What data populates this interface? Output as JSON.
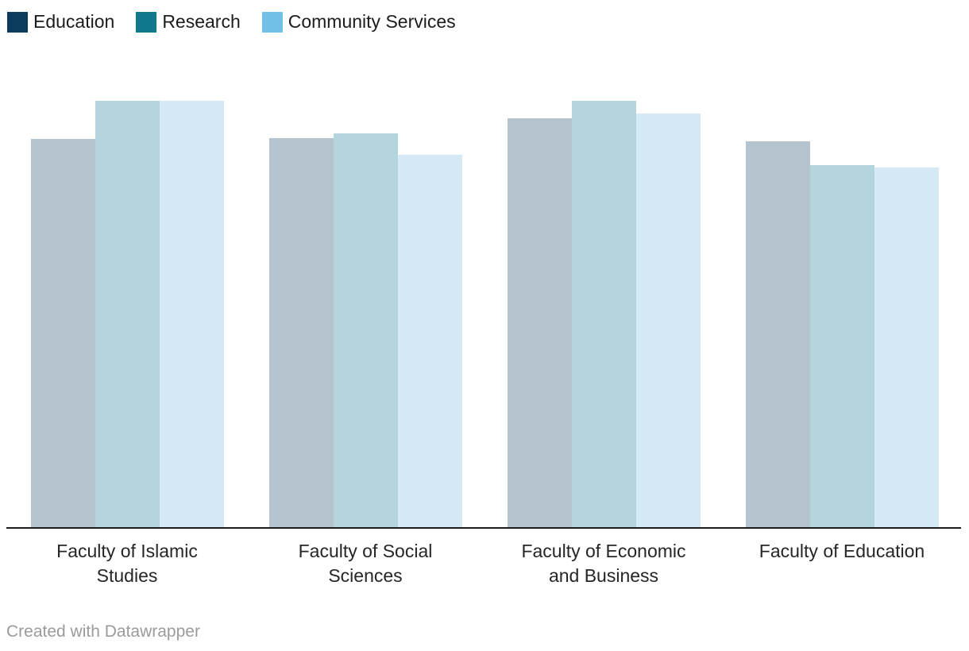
{
  "legend": {
    "items": [
      {
        "label": "Education",
        "color": "#0b3c5d"
      },
      {
        "label": "Research",
        "color": "#11788b"
      },
      {
        "label": "Community Services",
        "color": "#72c0e7"
      }
    ]
  },
  "footer": {
    "text": "Created with Datawrapper"
  },
  "chart_data": {
    "type": "bar",
    "title": "",
    "grouped": true,
    "categories": [
      "Faculty of Islamic Studies",
      "Faculty of Social Sciences",
      "Faculty of Economic and Business",
      "Faculty of Education"
    ],
    "xlabels": [
      "Faculty of Islamic\nStudies",
      "Faculty of Social\nSciences",
      "Faculty of Economic\nand Business",
      "Faculty of Education"
    ],
    "series": [
      {
        "name": "Education",
        "legend_color": "#0b3c5d",
        "bar_color": "#b4c3cd",
        "values": [
          91.1,
          91.3,
          95.9,
          90.5
        ]
      },
      {
        "name": "Research",
        "legend_color": "#11788b",
        "bar_color": "#b4d5db",
        "values": [
          100.0,
          92.4,
          100.0,
          85.0
        ]
      },
      {
        "name": "Community Services",
        "legend_color": "#72c0e7",
        "bar_color": "#d5eaf5",
        "values": [
          100.0,
          87.4,
          97.0,
          84.4
        ]
      }
    ],
    "ylim": [
      0,
      113
    ],
    "value_axis_hidden": true,
    "grid": false,
    "legend_position": "top-left",
    "axis_line_color": "#1a1a1a",
    "attribution": "Created with Datawrapper"
  }
}
